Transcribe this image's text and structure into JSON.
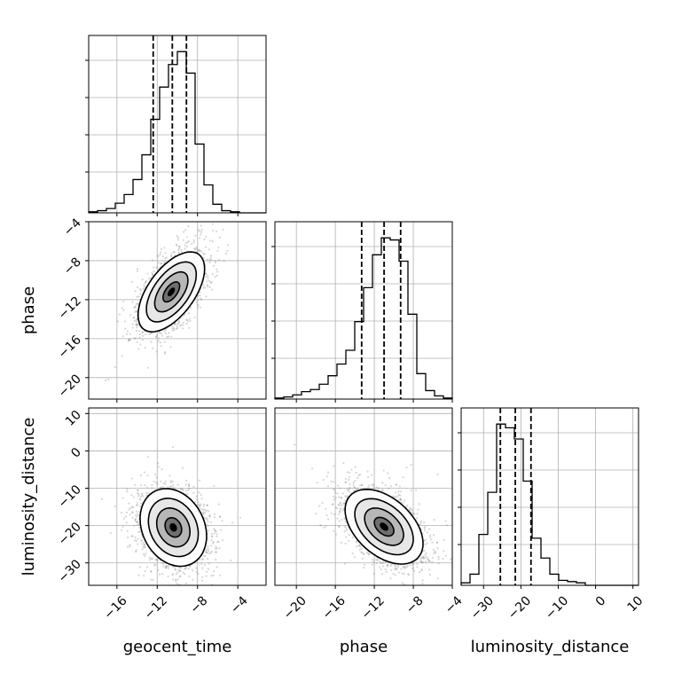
{
  "chart_data": {
    "type": "corner",
    "parameters": [
      "geocent_time",
      "phase",
      "luminosity_distance"
    ],
    "grid": true,
    "ranges": {
      "geocent_time": [
        -18.8,
        -1.2
      ],
      "phase": [
        -22.2,
        -4.0
      ],
      "luminosity_distance": [
        -36.0,
        11.5
      ]
    },
    "ticks": {
      "geocent_time": [
        -16,
        -12,
        -8,
        -4
      ],
      "phase": [
        -20,
        -16,
        -12,
        -8,
        -4
      ],
      "luminosity_distance": [
        -30,
        -20,
        -10,
        0,
        10
      ]
    },
    "tick_labels": {
      "geocent_time": [
        "−16",
        "−12",
        "−8",
        "−4"
      ],
      "phase": [
        "−20",
        "−16",
        "−12",
        "−8",
        "−4"
      ],
      "phase_y": [
        "−4",
        "−8",
        "−12",
        "−16",
        "−20"
      ],
      "luminosity_distance": [
        "−30",
        "−20",
        "−10",
        "0",
        "10"
      ],
      "luminosity_distance_y": [
        "10",
        "0",
        "−10",
        "−20",
        "−30"
      ]
    },
    "marginals": {
      "geocent_time": {
        "quantiles": [
          -12.4,
          -10.5,
          -9.1
        ],
        "bin_edges": [
          -18.8,
          -17.92,
          -17.04,
          -16.16,
          -15.28,
          -14.4,
          -13.52,
          -12.64,
          -11.76,
          -10.88,
          -10.0,
          -9.12,
          -8.24,
          -7.36,
          -6.48,
          -5.6,
          -4.72,
          -3.84,
          -2.96,
          -2.08,
          -1.2
        ],
        "counts": [
          1,
          2,
          4,
          9,
          17,
          31,
          54,
          87,
          117,
          138,
          150,
          130,
          64,
          26,
          8,
          2,
          1,
          0,
          0,
          0
        ]
      },
      "phase": {
        "quantiles": [
          -13.3,
          -11.0,
          -9.3
        ],
        "bin_edges": [
          -22.2,
          -21.29,
          -20.38,
          -19.47,
          -18.56,
          -17.65,
          -16.74,
          -15.83,
          -14.92,
          -14.01,
          -13.1,
          -12.19,
          -11.28,
          -10.37,
          -9.46,
          -8.55,
          -7.64,
          -6.73,
          -5.82,
          -4.91,
          -4.0
        ],
        "counts": [
          1,
          2,
          4,
          7,
          9,
          14,
          22,
          33,
          46,
          73,
          105,
          136,
          152,
          150,
          130,
          80,
          24,
          8,
          3,
          1
        ]
      },
      "luminosity_distance": {
        "quantiles": [
          -25.5,
          -21.5,
          -17.3
        ],
        "bin_edges": [
          -36.0,
          -33.625,
          -31.25,
          -28.875,
          -26.5,
          -24.125,
          -21.75,
          -19.375,
          -17.0,
          -14.625,
          -12.25,
          -9.875,
          -7.5,
          -5.125,
          -2.75,
          -0.375,
          2.0,
          4.375,
          6.75,
          9.125,
          11.5
        ],
        "counts": [
          2,
          9,
          41,
          75,
          130,
          127,
          118,
          84,
          38,
          22,
          9,
          4,
          3,
          2,
          0,
          0,
          0,
          0,
          0,
          0
        ]
      }
    },
    "joint": {
      "phase_vs_geocent_time": {
        "x_mean": -10.6,
        "y_mean": -11.2,
        "x_sd": 1.65,
        "y_sd": 2.05,
        "corr": 0.58
      },
      "luminosity_distance_vs_geocent_time": {
        "x_mean": -10.4,
        "y_mean": -20.5,
        "x_sd": 1.65,
        "y_sd": 5.2,
        "corr": -0.22
      },
      "luminosity_distance_vs_phase": {
        "x_mean": -11.0,
        "y_mean": -20.3,
        "x_sd": 2.0,
        "y_sd": 5.0,
        "corr": -0.45
      }
    },
    "contour_levels_sigma": [
      0.5,
      1.0,
      1.5,
      2.0
    ]
  }
}
